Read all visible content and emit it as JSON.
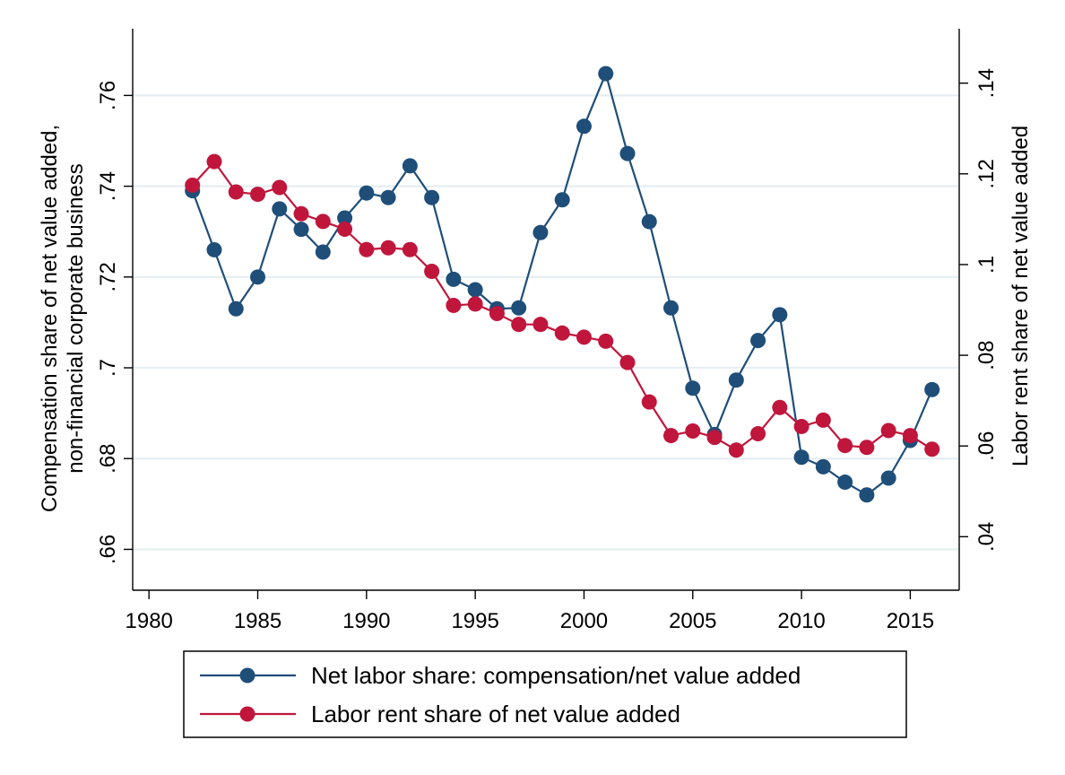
{
  "chart_data": {
    "type": "line",
    "x": [
      1982,
      1983,
      1984,
      1985,
      1986,
      1987,
      1988,
      1989,
      1990,
      1991,
      1992,
      1993,
      1994,
      1995,
      1996,
      1997,
      1998,
      1999,
      2000,
      2001,
      2002,
      2003,
      2004,
      2005,
      2006,
      2007,
      2008,
      2009,
      2010,
      2011,
      2012,
      2013,
      2014,
      2015,
      2016
    ],
    "series": [
      {
        "name": "Net labor share: compensation/net value added",
        "axis": "left",
        "color": "#1f4e79",
        "values": [
          0.739,
          0.726,
          0.713,
          0.72,
          0.735,
          0.7305,
          0.7255,
          0.733,
          0.7385,
          0.7375,
          0.7445,
          0.7375,
          0.7195,
          0.7172,
          0.713,
          0.7132,
          0.7298,
          0.737,
          0.7532,
          0.7648,
          0.7472,
          0.7322,
          0.7132,
          0.6955,
          0.6853,
          0.6973,
          0.706,
          0.7117,
          0.6803,
          0.6782,
          0.6748,
          0.672,
          0.6757,
          0.684,
          0.6952
        ]
      },
      {
        "name": "Labor rent share of net value added",
        "axis": "right",
        "color": "#c0163c",
        "values": [
          0.1175,
          0.1227,
          0.116,
          0.1155,
          0.117,
          0.1112,
          0.1095,
          0.1078,
          0.1033,
          0.1037,
          0.1033,
          0.0985,
          0.091,
          0.0913,
          0.0892,
          0.0868,
          0.0868,
          0.0849,
          0.084,
          0.0831,
          0.0784,
          0.0697,
          0.0623,
          0.0633,
          0.0619,
          0.0591,
          0.0627,
          0.0685,
          0.0643,
          0.0657,
          0.0601,
          0.0597,
          0.0634,
          0.0623,
          0.0593
        ]
      }
    ],
    "x_ticks": [
      "1980",
      "1985",
      "1990",
      "1995",
      "2000",
      "2005",
      "2010",
      "2015"
    ],
    "y_left_ticks": [
      ".66",
      ".68",
      ".7",
      ".72",
      ".74",
      ".76"
    ],
    "y_right_ticks": [
      ".04",
      ".06",
      ".08",
      ".1",
      ".12",
      ".14"
    ],
    "xlim": [
      1979.25,
      2017.25
    ],
    "ylim_left": [
      0.651,
      0.7747
    ],
    "ylim_right": [
      0.0282,
      0.152
    ],
    "ylabel_left": [
      "Compensation share of net value added,",
      "non-financial corporate business"
    ],
    "ylabel_right": "Labor rent share of net value added",
    "xlabel": "",
    "grid": true,
    "legend_position": "bottom"
  }
}
